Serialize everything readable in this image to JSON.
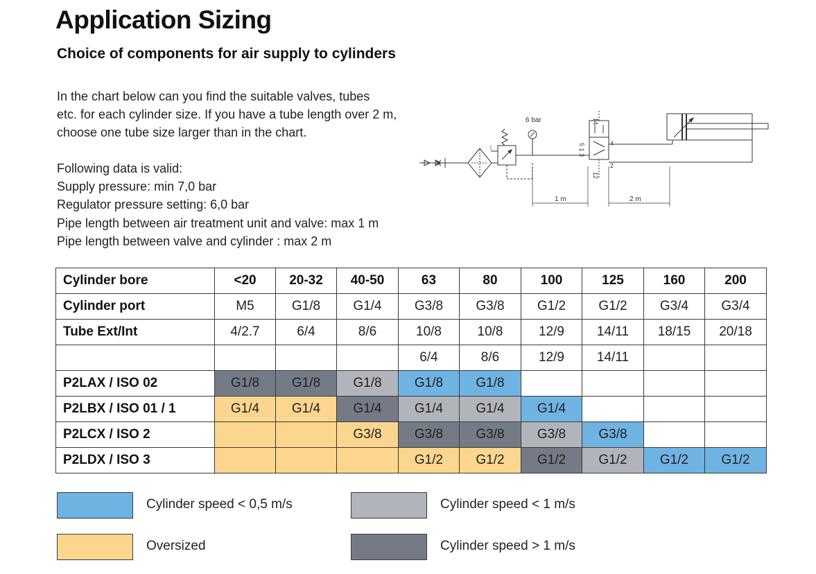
{
  "page": {
    "title": "Application Sizing",
    "subtitle": "Choice of components for air supply to cylinders"
  },
  "intro": {
    "lines": [
      "In the chart below can you find the suitable valves, tubes",
      "etc. for each cylinder size. If you have a tube length over 2 m,",
      "choose one tube size larger than in the chart."
    ]
  },
  "conditions": {
    "heading": "Following data is valid:",
    "items": [
      "Supply pressure: min 7,0 bar",
      "Regulator pressure setting: 6,0 bar",
      "Pipe length between air treatment unit and valve: max 1 m",
      "Pipe length between valve and cylinder : max 2 m"
    ]
  },
  "diagram": {
    "pressure_label": "6 bar",
    "dist_valve_label": "1 m",
    "dist_cyl_label": "2 m",
    "port_labels": [
      "14",
      "4",
      "5 1 3",
      "2",
      "12"
    ]
  },
  "table": {
    "rows": [
      {
        "header": "Cylinder bore",
        "cells": [
          {
            "text": "<20",
            "color": ""
          },
          {
            "text": "20-32",
            "color": ""
          },
          {
            "text": "40-50",
            "color": ""
          },
          {
            "text": "63",
            "color": ""
          },
          {
            "text": "80",
            "color": ""
          },
          {
            "text": "100",
            "color": ""
          },
          {
            "text": "125",
            "color": ""
          },
          {
            "text": "160",
            "color": ""
          },
          {
            "text": "200",
            "color": ""
          }
        ]
      },
      {
        "header": "Cylinder port",
        "cells": [
          {
            "text": "M5",
            "color": ""
          },
          {
            "text": "G1/8",
            "color": ""
          },
          {
            "text": "G1/4",
            "color": ""
          },
          {
            "text": "G3/8",
            "color": ""
          },
          {
            "text": "G3/8",
            "color": ""
          },
          {
            "text": "G1/2",
            "color": ""
          },
          {
            "text": "G1/2",
            "color": ""
          },
          {
            "text": "G3/4",
            "color": ""
          },
          {
            "text": "G3/4",
            "color": ""
          }
        ]
      },
      {
        "header": "Tube Ext/Int",
        "cells": [
          {
            "text": "4/2.7",
            "color": ""
          },
          {
            "text": "6/4",
            "color": ""
          },
          {
            "text": "8/6",
            "color": ""
          },
          {
            "text": "10/8",
            "color": ""
          },
          {
            "text": "10/8",
            "color": ""
          },
          {
            "text": "12/9",
            "color": ""
          },
          {
            "text": "14/11",
            "color": ""
          },
          {
            "text": "18/15",
            "color": ""
          },
          {
            "text": "20/18",
            "color": ""
          }
        ]
      },
      {
        "header": "",
        "cells": [
          {
            "text": "",
            "color": ""
          },
          {
            "text": "",
            "color": ""
          },
          {
            "text": "",
            "color": ""
          },
          {
            "text": "6/4",
            "color": ""
          },
          {
            "text": "8/6",
            "color": ""
          },
          {
            "text": "12/9",
            "color": ""
          },
          {
            "text": "14/11",
            "color": ""
          },
          {
            "text": "",
            "color": ""
          },
          {
            "text": "",
            "color": ""
          }
        ]
      },
      {
        "header": "P2LAX / ISO 02",
        "cells": [
          {
            "text": "G1/8",
            "color": "dark_gray"
          },
          {
            "text": "G1/8",
            "color": "dark_gray"
          },
          {
            "text": "G1/8",
            "color": "light_gray"
          },
          {
            "text": "G1/8",
            "color": "blue"
          },
          {
            "text": "G1/8",
            "color": "blue"
          },
          {
            "text": "",
            "color": ""
          },
          {
            "text": "",
            "color": ""
          },
          {
            "text": "",
            "color": ""
          },
          {
            "text": "",
            "color": ""
          }
        ]
      },
      {
        "header": "P2LBX / ISO 01 / 1",
        "cells": [
          {
            "text": "G1/4",
            "color": "orange"
          },
          {
            "text": "G1/4",
            "color": "orange"
          },
          {
            "text": "G1/4",
            "color": "dark_gray"
          },
          {
            "text": "G1/4",
            "color": "light_gray"
          },
          {
            "text": "G1/4",
            "color": "light_gray"
          },
          {
            "text": "G1/4",
            "color": "blue"
          },
          {
            "text": "",
            "color": ""
          },
          {
            "text": "",
            "color": ""
          },
          {
            "text": "",
            "color": ""
          }
        ]
      },
      {
        "header": "P2LCX / ISO 2",
        "cells": [
          {
            "text": "",
            "color": "orange"
          },
          {
            "text": "",
            "color": "orange"
          },
          {
            "text": "G3/8",
            "color": "orange"
          },
          {
            "text": "G3/8",
            "color": "dark_gray"
          },
          {
            "text": "G3/8",
            "color": "dark_gray"
          },
          {
            "text": "G3/8",
            "color": "light_gray"
          },
          {
            "text": "G3/8",
            "color": "blue"
          },
          {
            "text": "",
            "color": ""
          },
          {
            "text": "",
            "color": ""
          }
        ]
      },
      {
        "header": "P2LDX / ISO 3",
        "cells": [
          {
            "text": "",
            "color": "orange"
          },
          {
            "text": "",
            "color": "orange"
          },
          {
            "text": "",
            "color": "orange"
          },
          {
            "text": "G1/2",
            "color": "orange"
          },
          {
            "text": "G1/2",
            "color": "orange"
          },
          {
            "text": "G1/2",
            "color": "dark_gray"
          },
          {
            "text": "G1/2",
            "color": "light_gray"
          },
          {
            "text": "G1/2",
            "color": "blue"
          },
          {
            "text": "G1/2",
            "color": "blue"
          }
        ]
      }
    ]
  },
  "legend": {
    "blue": {
      "label": "Cylinder speed < 0,5 m/s",
      "color": "#6fb3e3"
    },
    "orange": {
      "label": "Oversized",
      "color": "#fcd68e"
    },
    "light_gray": {
      "label": "Cylinder speed < 1 m/s",
      "color": "#b1b4ba"
    },
    "dark_gray": {
      "label": "Cylinder speed > 1 m/s",
      "color": "#747b86"
    }
  }
}
